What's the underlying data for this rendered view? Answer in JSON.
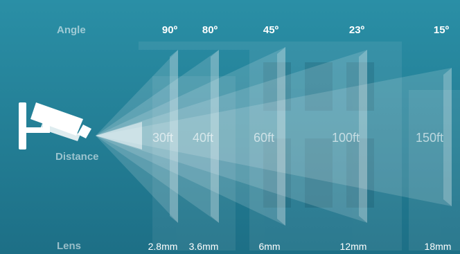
{
  "colors": {
    "background_top": "#2a8fa6",
    "background_bottom": "#1d6f86",
    "beam": "#ffffff",
    "camera": "#ffffff"
  },
  "icons": {
    "camera": "cctv-camera-icon"
  },
  "row_labels": {
    "angle": "Angle",
    "distance": "Distance",
    "lens": "Lens"
  },
  "lenses": [
    {
      "angle": "90º",
      "distance": "30ft",
      "lens": "2.8mm"
    },
    {
      "angle": "80º",
      "distance": "40ft",
      "lens": "3.6mm"
    },
    {
      "angle": "45º",
      "distance": "60ft",
      "lens": "6mm"
    },
    {
      "angle": "23º",
      "distance": "100ft",
      "lens": "12mm"
    },
    {
      "angle": "15º",
      "distance": "150ft",
      "lens": "18mm"
    }
  ]
}
